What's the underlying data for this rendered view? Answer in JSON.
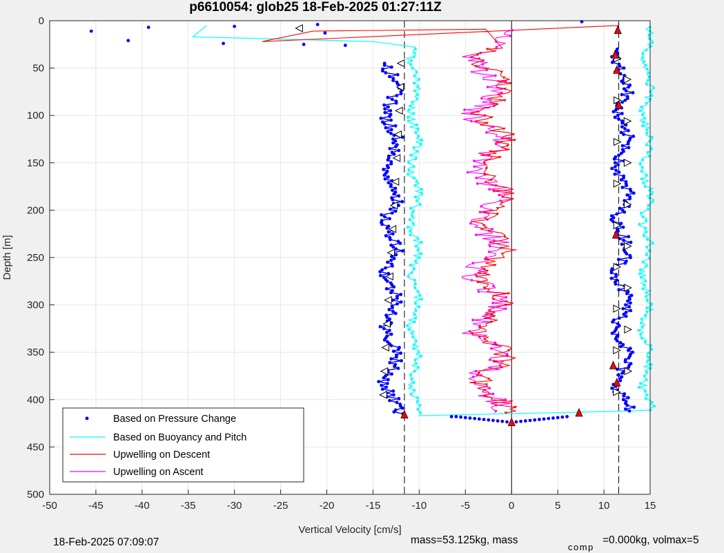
{
  "chart_data": {
    "type": "scatter",
    "title": "p6610054: glob25 18-Feb-2025 01:27:11Z",
    "xlabel": "Vertical Velocity [cm/s]",
    "ylabel": "Depth [m]",
    "xlim": [
      -50,
      15
    ],
    "ylim": [
      0,
      500
    ],
    "y_reversed": true,
    "grid": true,
    "xticks": [
      -50,
      -45,
      -40,
      -35,
      -30,
      -25,
      -20,
      -15,
      -10,
      -5,
      0,
      5,
      10,
      15
    ],
    "yticks": [
      0,
      50,
      100,
      150,
      200,
      250,
      300,
      350,
      400,
      450,
      500
    ],
    "legend_position": "bottom-left",
    "reference_lines": {
      "dashed_x": [
        -11.6,
        11.6
      ],
      "solid_x": [
        0
      ]
    },
    "series": [
      {
        "name": "Based on Pressure Change",
        "color": "#0000ff",
        "marker": "dot",
        "descent": {
          "mean_velocity": -13.0,
          "depth_range": [
            45,
            415
          ]
        },
        "ascent": {
          "mean_velocity": 12.0,
          "depth_range": [
            30,
            412
          ]
        },
        "isolated_points": [
          {
            "x": -45.5,
            "y": 11
          },
          {
            "x": -41.5,
            "y": 21
          },
          {
            "x": -39.3,
            "y": 7
          },
          {
            "x": -31.2,
            "y": 24
          },
          {
            "x": -30.0,
            "y": 6
          },
          {
            "x": -22.5,
            "y": 25
          },
          {
            "x": -21.0,
            "y": 4
          },
          {
            "x": -20.2,
            "y": 13
          },
          {
            "x": -18.0,
            "y": 26
          },
          {
            "x": -6.5,
            "y": 418
          },
          {
            "x": 7.6,
            "y": 1
          }
        ]
      },
      {
        "name": "Based on Buoyancy and Pitch",
        "color": "#00ffff",
        "marker": "line",
        "descent": {
          "mean_velocity": -10.5,
          "depth_range": [
            30,
            415
          ]
        },
        "ascent": {
          "mean_velocity": 14.6,
          "depth_range": [
            5,
            412
          ]
        },
        "transition_points": [
          {
            "x": -34.5,
            "y": 17
          },
          {
            "x": -33.0,
            "y": 5
          },
          {
            "x": -15.0,
            "y": 22
          },
          {
            "x": -10.4,
            "y": 28
          },
          {
            "x": -10.1,
            "y": 417
          },
          {
            "x": 13.0,
            "y": 412
          }
        ]
      },
      {
        "name": "Upwelling on Descent",
        "color": "#ff0000",
        "marker": "line",
        "mean_velocity": -2.0,
        "depth_range": [
          30,
          415
        ],
        "near_surface_points": [
          {
            "x": 11.6,
            "y": 5
          },
          {
            "x": -27.0,
            "y": 22
          },
          {
            "x": -21.5,
            "y": 11
          },
          {
            "x": -2.8,
            "y": 9
          },
          {
            "x": -1.0,
            "y": 29
          }
        ]
      },
      {
        "name": "Upwelling on Ascent",
        "color": "#ff00ff",
        "marker": "line",
        "mean_velocity": -2.6,
        "depth_range": [
          10,
          415
        ]
      }
    ],
    "annotations": [
      "18-Feb-2025 07:09:07",
      "mass=53.125kg, mass",
      "comp",
      "=0.000kg, volmax=5"
    ]
  }
}
